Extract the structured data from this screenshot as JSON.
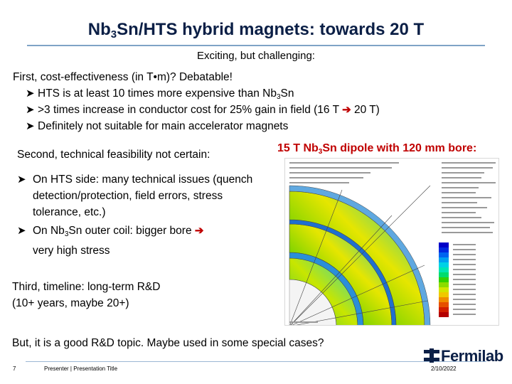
{
  "title": {
    "pre": "Nb",
    "sub": "3",
    "post": "Sn/HTS hybrid magnets: towards 20 T"
  },
  "subtitle": "Exciting, but challenging:",
  "first": {
    "line": "First, cost-effectiveness (in T•m)? Debatable!",
    "bullets": [
      {
        "pre": "HTS is at least 10 times more expensive than Nb",
        "sub": "3",
        "post": "Sn"
      },
      {
        "pre": ">3 times increase in conductor cost for 25% gain in field (16 T ",
        "post": " 20 T)"
      },
      {
        "text": "Definitely not suitable for main accelerator magnets"
      }
    ]
  },
  "second": {
    "line": "Second, technical feasibility not certain:",
    "bullets": [
      {
        "text": "On HTS side: many technical issues (quench detection/protection, field errors, stress tolerance, etc.)"
      },
      {
        "pre": "On Nb",
        "sub": "3",
        "post": "Sn outer coil: bigger bore ",
        "tail": "very high stress"
      }
    ]
  },
  "figure_caption": {
    "pre": "15 T Nb",
    "sub": "3",
    "post": "Sn dipole with 120 mm bore:"
  },
  "third": {
    "line1": "Third, timeline: long-term R&D",
    "line2": "(10+ years, maybe 20+)"
  },
  "closing": "But, it is a good R&D topic. Maybe used in some special cases?",
  "footer": {
    "page": "7",
    "presenter": "Presenter | Presentation Title",
    "date": "2/10/2022",
    "logo_text": "Fermilab"
  },
  "icons": {
    "bullet": "arrow-bullet-icon",
    "implies": "right-arrow-icon",
    "logo": "fermilab-logo-icon"
  },
  "colors": {
    "title": "#0b1f46",
    "caption": "#c00000",
    "rule": "#7fa3c6"
  }
}
